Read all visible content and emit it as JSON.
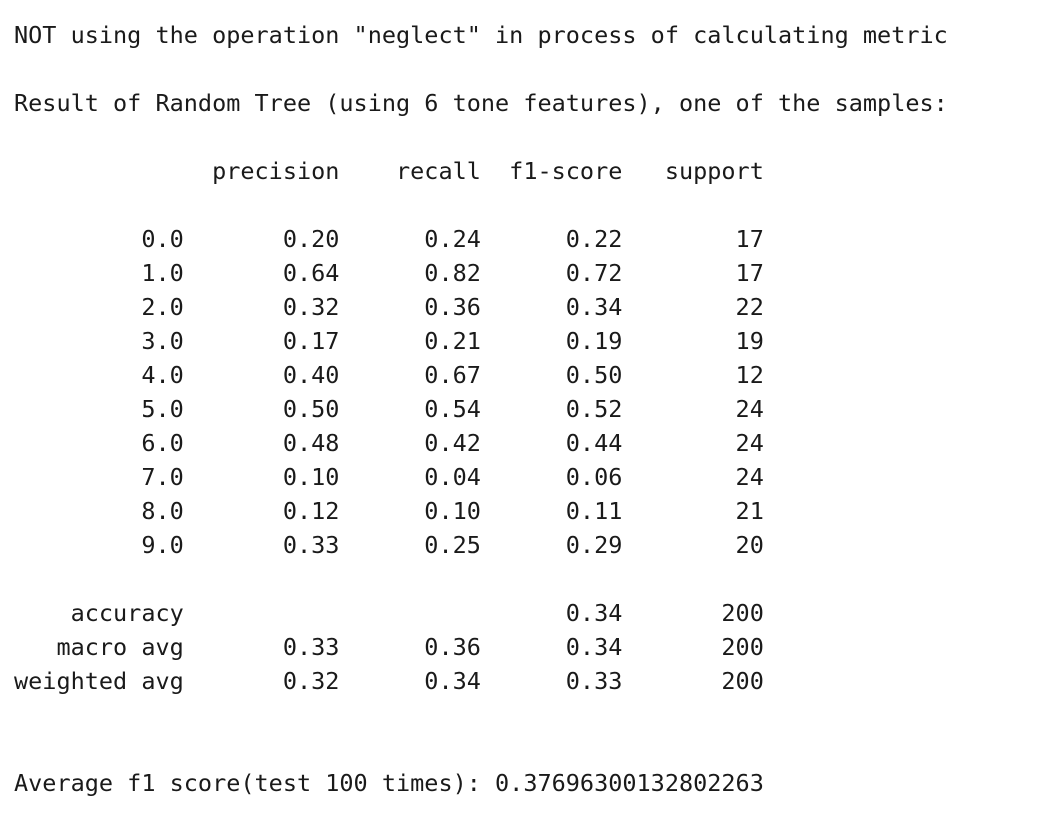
{
  "output": {
    "lines": [
      "NOT using the operation \"neglect\" in process of calculating metric",
      "",
      "Result of Random Tree (using 6 tone features), one of the samples:",
      "",
      "              precision    recall  f1-score   support",
      "",
      "         0.0       0.20      0.24      0.22        17",
      "         1.0       0.64      0.82      0.72        17",
      "         2.0       0.32      0.36      0.34        22",
      "         3.0       0.17      0.21      0.19        19",
      "         4.0       0.40      0.67      0.50        12",
      "         5.0       0.50      0.54      0.52        24",
      "         6.0       0.48      0.42      0.44        24",
      "         7.0       0.10      0.04      0.06        24",
      "         8.0       0.12      0.10      0.11        21",
      "         9.0       0.33      0.25      0.29        20",
      "",
      "    accuracy                           0.34       200",
      "   macro avg       0.33      0.36      0.34       200",
      "weighted avg       0.32      0.34      0.33       200",
      "",
      "",
      "Average f1 score(test 100 times): 0.37696300132802263"
    ]
  }
}
